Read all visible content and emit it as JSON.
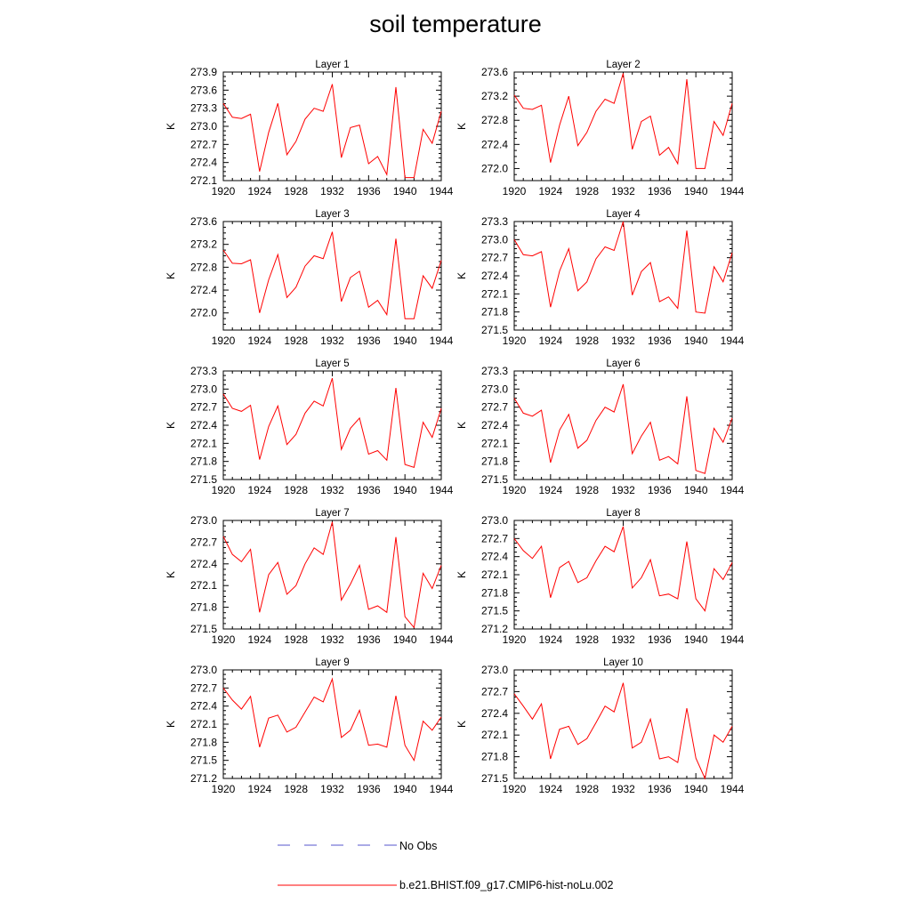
{
  "title": "soil temperature",
  "legend": {
    "items": [
      {
        "label": "No Obs",
        "color": "#5555cc",
        "style": "dashed"
      },
      {
        "label": "b.e21.BHIST.f09_g17.CMIP6-hist-noLu.002",
        "color": "#ff0000",
        "style": "solid"
      }
    ]
  },
  "chart_data": [
    {
      "type": "line",
      "title": "Layer 1",
      "ylabel": "K",
      "x": [
        1920,
        1921,
        1922,
        1923,
        1924,
        1925,
        1926,
        1927,
        1928,
        1929,
        1930,
        1931,
        1932,
        1933,
        1934,
        1935,
        1936,
        1937,
        1938,
        1939,
        1940,
        1941,
        1942,
        1943,
        1944
      ],
      "xlim": [
        1920,
        1944
      ],
      "xticks": [
        1920,
        1924,
        1928,
        1932,
        1936,
        1940,
        1944
      ],
      "ylim": [
        272.1,
        273.9
      ],
      "yticks": [
        "272.1",
        "272.4",
        "272.7",
        "273.0",
        "273.3",
        "273.6",
        "273.9"
      ],
      "series": [
        {
          "color": "#ff0000",
          "values": [
            273.38,
            273.15,
            273.13,
            273.2,
            272.25,
            272.9,
            273.38,
            272.53,
            272.75,
            273.12,
            273.3,
            273.25,
            273.7,
            272.48,
            272.98,
            273.02,
            272.38,
            272.5,
            272.2,
            273.65,
            272.15,
            272.15,
            272.95,
            272.72,
            273.25
          ]
        }
      ]
    },
    {
      "type": "line",
      "title": "Layer 2",
      "ylabel": "K",
      "x": [
        1920,
        1921,
        1922,
        1923,
        1924,
        1925,
        1926,
        1927,
        1928,
        1929,
        1930,
        1931,
        1932,
        1933,
        1934,
        1935,
        1936,
        1937,
        1938,
        1939,
        1940,
        1941,
        1942,
        1943,
        1944
      ],
      "xlim": [
        1920,
        1944
      ],
      "xticks": [
        1920,
        1924,
        1928,
        1932,
        1936,
        1940,
        1944
      ],
      "ylim": [
        271.8,
        273.6
      ],
      "yticks": [
        "272.0",
        "272.4",
        "272.8",
        "273.2",
        "273.6"
      ],
      "series": [
        {
          "color": "#ff0000",
          "values": [
            273.22,
            273.0,
            272.98,
            273.05,
            272.1,
            272.72,
            273.2,
            272.38,
            272.6,
            272.95,
            273.15,
            273.08,
            273.58,
            272.32,
            272.78,
            272.87,
            272.22,
            272.35,
            272.08,
            273.48,
            272.0,
            272.0,
            272.78,
            272.55,
            273.08
          ]
        }
      ]
    },
    {
      "type": "line",
      "title": "Layer 3",
      "ylabel": "K",
      "x": [
        1920,
        1921,
        1922,
        1923,
        1924,
        1925,
        1926,
        1927,
        1928,
        1929,
        1930,
        1931,
        1932,
        1933,
        1934,
        1935,
        1936,
        1937,
        1938,
        1939,
        1940,
        1941,
        1942,
        1943,
        1944
      ],
      "xlim": [
        1920,
        1944
      ],
      "xticks": [
        1920,
        1924,
        1928,
        1932,
        1936,
        1940,
        1944
      ],
      "ylim": [
        271.7,
        273.6
      ],
      "yticks": [
        "272.0",
        "272.4",
        "272.8",
        "273.2",
        "273.6"
      ],
      "series": [
        {
          "color": "#ff0000",
          "values": [
            273.1,
            272.87,
            272.86,
            272.93,
            272.0,
            272.58,
            273.02,
            272.27,
            272.45,
            272.82,
            273.0,
            272.95,
            273.42,
            272.2,
            272.62,
            272.73,
            272.1,
            272.22,
            271.97,
            273.3,
            271.9,
            271.9,
            272.65,
            272.43,
            272.92
          ]
        }
      ]
    },
    {
      "type": "line",
      "title": "Layer 4",
      "ylabel": "K",
      "x": [
        1920,
        1921,
        1922,
        1923,
        1924,
        1925,
        1926,
        1927,
        1928,
        1929,
        1930,
        1931,
        1932,
        1933,
        1934,
        1935,
        1936,
        1937,
        1938,
        1939,
        1940,
        1941,
        1942,
        1943,
        1944
      ],
      "xlim": [
        1920,
        1944
      ],
      "xticks": [
        1920,
        1924,
        1928,
        1932,
        1936,
        1940,
        1944
      ],
      "ylim": [
        271.5,
        273.3
      ],
      "yticks": [
        "271.5",
        "271.8",
        "272.1",
        "272.4",
        "272.7",
        "273.0",
        "273.3"
      ],
      "series": [
        {
          "color": "#ff0000",
          "values": [
            273.0,
            272.75,
            272.73,
            272.8,
            271.88,
            272.48,
            272.85,
            272.15,
            272.3,
            272.68,
            272.88,
            272.82,
            273.3,
            272.08,
            272.47,
            272.62,
            271.97,
            272.05,
            271.86,
            273.15,
            271.8,
            271.78,
            272.55,
            272.3,
            272.78
          ]
        }
      ]
    },
    {
      "type": "line",
      "title": "Layer 5",
      "ylabel": "K",
      "x": [
        1920,
        1921,
        1922,
        1923,
        1924,
        1925,
        1926,
        1927,
        1928,
        1929,
        1930,
        1931,
        1932,
        1933,
        1934,
        1935,
        1936,
        1937,
        1938,
        1939,
        1940,
        1941,
        1942,
        1943,
        1944
      ],
      "xlim": [
        1920,
        1944
      ],
      "xticks": [
        1920,
        1924,
        1928,
        1932,
        1936,
        1940,
        1944
      ],
      "ylim": [
        271.5,
        273.3
      ],
      "yticks": [
        "271.5",
        "271.8",
        "272.1",
        "272.4",
        "272.7",
        "273.0",
        "273.3"
      ],
      "series": [
        {
          "color": "#ff0000",
          "values": [
            272.92,
            272.68,
            272.63,
            272.73,
            271.83,
            272.38,
            272.72,
            272.08,
            272.25,
            272.6,
            272.8,
            272.72,
            273.18,
            272.0,
            272.35,
            272.52,
            271.92,
            271.98,
            271.82,
            273.02,
            271.75,
            271.7,
            272.45,
            272.2,
            272.68
          ]
        }
      ]
    },
    {
      "type": "line",
      "title": "Layer 6",
      "ylabel": "K",
      "x": [
        1920,
        1921,
        1922,
        1923,
        1924,
        1925,
        1926,
        1927,
        1928,
        1929,
        1930,
        1931,
        1932,
        1933,
        1934,
        1935,
        1936,
        1937,
        1938,
        1939,
        1940,
        1941,
        1942,
        1943,
        1944
      ],
      "xlim": [
        1920,
        1944
      ],
      "xticks": [
        1920,
        1924,
        1928,
        1932,
        1936,
        1940,
        1944
      ],
      "ylim": [
        271.5,
        273.3
      ],
      "yticks": [
        "271.5",
        "271.8",
        "272.1",
        "272.4",
        "272.7",
        "273.0",
        "273.3"
      ],
      "series": [
        {
          "color": "#ff0000",
          "values": [
            272.85,
            272.6,
            272.55,
            272.65,
            271.78,
            272.32,
            272.58,
            272.02,
            272.15,
            272.48,
            272.7,
            272.62,
            273.08,
            271.93,
            272.22,
            272.45,
            271.82,
            271.88,
            271.76,
            272.88,
            271.65,
            271.6,
            272.35,
            272.12,
            272.52
          ]
        }
      ]
    },
    {
      "type": "line",
      "title": "Layer 7",
      "ylabel": "K",
      "x": [
        1920,
        1921,
        1922,
        1923,
        1924,
        1925,
        1926,
        1927,
        1928,
        1929,
        1930,
        1931,
        1932,
        1933,
        1934,
        1935,
        1936,
        1937,
        1938,
        1939,
        1940,
        1941,
        1942,
        1943,
        1944
      ],
      "xlim": [
        1920,
        1944
      ],
      "xticks": [
        1920,
        1924,
        1928,
        1932,
        1936,
        1940,
        1944
      ],
      "ylim": [
        271.5,
        273.0
      ],
      "yticks": [
        "271.5",
        "271.8",
        "272.1",
        "272.4",
        "272.7",
        "273.0"
      ],
      "series": [
        {
          "color": "#ff0000",
          "values": [
            272.78,
            272.53,
            272.43,
            272.6,
            271.73,
            272.25,
            272.42,
            271.98,
            272.1,
            272.4,
            272.62,
            272.53,
            272.98,
            271.9,
            272.12,
            272.38,
            271.77,
            271.82,
            271.73,
            272.77,
            271.67,
            271.52,
            272.27,
            272.06,
            272.38
          ]
        }
      ]
    },
    {
      "type": "line",
      "title": "Layer 8",
      "ylabel": "K",
      "x": [
        1920,
        1921,
        1922,
        1923,
        1924,
        1925,
        1926,
        1927,
        1928,
        1929,
        1930,
        1931,
        1932,
        1933,
        1934,
        1935,
        1936,
        1937,
        1938,
        1939,
        1940,
        1941,
        1942,
        1943,
        1944
      ],
      "xlim": [
        1920,
        1944
      ],
      "xticks": [
        1920,
        1924,
        1928,
        1932,
        1936,
        1940,
        1944
      ],
      "ylim": [
        271.2,
        273.0
      ],
      "yticks": [
        "271.2",
        "271.5",
        "271.8",
        "272.1",
        "272.4",
        "272.7",
        "273.0"
      ],
      "series": [
        {
          "color": "#ff0000",
          "values": [
            272.7,
            272.5,
            272.37,
            272.57,
            271.72,
            272.22,
            272.32,
            271.97,
            272.05,
            272.33,
            272.57,
            272.48,
            272.9,
            271.88,
            272.05,
            272.35,
            271.75,
            271.78,
            271.7,
            272.65,
            271.7,
            271.5,
            272.2,
            272.02,
            272.3
          ]
        }
      ]
    },
    {
      "type": "line",
      "title": "Layer 9",
      "ylabel": "K",
      "x": [
        1920,
        1921,
        1922,
        1923,
        1924,
        1925,
        1926,
        1927,
        1928,
        1929,
        1930,
        1931,
        1932,
        1933,
        1934,
        1935,
        1936,
        1937,
        1938,
        1939,
        1940,
        1941,
        1942,
        1943,
        1944
      ],
      "xlim": [
        1920,
        1944
      ],
      "xticks": [
        1920,
        1924,
        1928,
        1932,
        1936,
        1940,
        1944
      ],
      "ylim": [
        271.2,
        273.0
      ],
      "yticks": [
        "271.2",
        "271.5",
        "271.8",
        "272.1",
        "272.4",
        "272.7",
        "273.0"
      ],
      "series": [
        {
          "color": "#ff0000",
          "values": [
            272.7,
            272.5,
            272.35,
            272.56,
            271.72,
            272.2,
            272.25,
            271.97,
            272.05,
            272.3,
            272.55,
            272.47,
            272.85,
            271.88,
            272.0,
            272.33,
            271.75,
            271.77,
            271.72,
            272.57,
            271.75,
            271.5,
            272.15,
            272.0,
            272.22
          ]
        }
      ]
    },
    {
      "type": "line",
      "title": "Layer 10",
      "ylabel": "K",
      "x": [
        1920,
        1921,
        1922,
        1923,
        1924,
        1925,
        1926,
        1927,
        1928,
        1929,
        1930,
        1931,
        1932,
        1933,
        1934,
        1935,
        1936,
        1937,
        1938,
        1939,
        1940,
        1941,
        1942,
        1943,
        1944
      ],
      "xlim": [
        1920,
        1944
      ],
      "xticks": [
        1920,
        1924,
        1928,
        1932,
        1936,
        1940,
        1944
      ],
      "ylim": [
        271.5,
        273.0
      ],
      "yticks": [
        "271.5",
        "271.8",
        "272.1",
        "272.4",
        "272.7",
        "273.0"
      ],
      "series": [
        {
          "color": "#ff0000",
          "values": [
            272.67,
            272.5,
            272.32,
            272.53,
            271.77,
            272.18,
            272.22,
            271.97,
            272.05,
            272.27,
            272.5,
            272.42,
            272.82,
            271.92,
            272.0,
            272.32,
            271.77,
            271.8,
            271.72,
            272.47,
            271.78,
            271.5,
            272.1,
            272.0,
            272.22
          ]
        }
      ]
    }
  ]
}
